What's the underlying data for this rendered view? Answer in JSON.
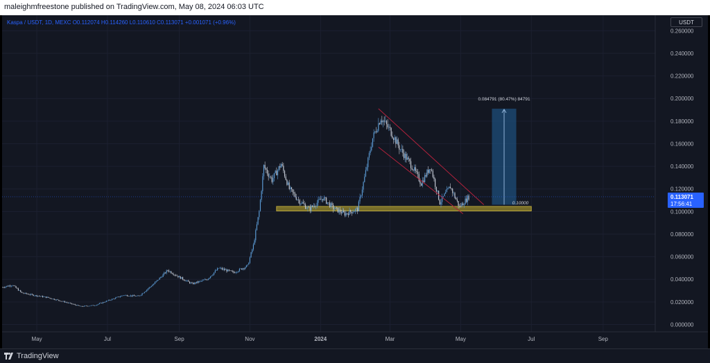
{
  "header": {
    "published_text": "maleighmfreestone published on TradingView.com, May 08, 2024 06:03 UTC"
  },
  "legend": {
    "text": "Kaspa / USDT, 1D, MEXC  O0.112074  H0.114260  L0.110610  C0.113071  +0.001071 (+0.96%)"
  },
  "currency": "USDT",
  "footer": {
    "brand": "TradingView",
    "logo_icon": "tradingview-logo-icon"
  },
  "colors": {
    "background": "#131722",
    "up": "#5b9bd5",
    "down": "#c3c9d4",
    "support_zone": "#8a7d2a",
    "channel": "#b2223c",
    "projection": "#1e4e7a",
    "price_badge": "#2962ff"
  },
  "chart_data": {
    "type": "candlestick",
    "title": "Kaspa / USDT, 1D, MEXC",
    "interval": "1D",
    "ylabel": "USDT",
    "ylim": [
      -0.004,
      0.27
    ],
    "y_ticks": [
      "0.260000",
      "0.240000",
      "0.220000",
      "0.200000",
      "0.180000",
      "0.160000",
      "0.140000",
      "0.120000",
      "0.100000",
      "0.080000",
      "0.060000",
      "0.040000",
      "0.020000",
      "0.000000"
    ],
    "x_ticks": [
      "May",
      "Jul",
      "Sep",
      "Nov",
      "2024",
      "Mar",
      "May",
      "Jul",
      "Sep"
    ],
    "x_ticks_date": [
      "2023-05-01",
      "2023-07-01",
      "2023-09-01",
      "2023-11-01",
      "2024-01-01",
      "2024-03-01",
      "2024-05-01",
      "2024-07-01",
      "2024-09-01"
    ],
    "x_range": [
      "2023-04-01",
      "2024-10-16"
    ],
    "price_path": [
      [
        "2023-04-01",
        0.033
      ],
      [
        "2023-04-10",
        0.035
      ],
      [
        "2023-04-18",
        0.028
      ],
      [
        "2023-04-28",
        0.026
      ],
      [
        "2023-05-10",
        0.024
      ],
      [
        "2023-05-25",
        0.02
      ],
      [
        "2023-06-08",
        0.016
      ],
      [
        "2023-06-20",
        0.017
      ],
      [
        "2023-07-01",
        0.021
      ],
      [
        "2023-07-15",
        0.026
      ],
      [
        "2023-07-28",
        0.025
      ],
      [
        "2023-08-10",
        0.036
      ],
      [
        "2023-08-22",
        0.048
      ],
      [
        "2023-09-01",
        0.042
      ],
      [
        "2023-09-12",
        0.036
      ],
      [
        "2023-09-25",
        0.04
      ],
      [
        "2023-10-05",
        0.05
      ],
      [
        "2023-10-18",
        0.046
      ],
      [
        "2023-10-30",
        0.052
      ],
      [
        "2023-11-04",
        0.07
      ],
      [
        "2023-11-09",
        0.1
      ],
      [
        "2023-11-13",
        0.14
      ],
      [
        "2023-11-20",
        0.128
      ],
      [
        "2023-11-28",
        0.142
      ],
      [
        "2023-12-05",
        0.12
      ],
      [
        "2023-12-13",
        0.11
      ],
      [
        "2023-12-22",
        0.102
      ],
      [
        "2024-01-03",
        0.112
      ],
      [
        "2024-01-12",
        0.103
      ],
      [
        "2024-01-22",
        0.098
      ],
      [
        "2024-02-02",
        0.102
      ],
      [
        "2024-02-08",
        0.13
      ],
      [
        "2024-02-15",
        0.165
      ],
      [
        "2024-02-22",
        0.183
      ],
      [
        "2024-03-01",
        0.172
      ],
      [
        "2024-03-10",
        0.155
      ],
      [
        "2024-03-20",
        0.14
      ],
      [
        "2024-03-28",
        0.125
      ],
      [
        "2024-04-05",
        0.14
      ],
      [
        "2024-04-13",
        0.108
      ],
      [
        "2024-04-22",
        0.122
      ],
      [
        "2024-04-30",
        0.104
      ],
      [
        "2024-05-08",
        0.113
      ]
    ],
    "last_price": "0.113071",
    "countdown": "17:56:41",
    "annotations": {
      "horizontal_level": {
        "label": "0.10000",
        "value": 0.1
      },
      "support_zone": {
        "from": 0.1005,
        "to": 0.1045,
        "start": "2023-11-24",
        "end": "2024-07-01"
      },
      "channel": {
        "upper": [
          [
            "2024-02-20",
            0.191
          ],
          [
            "2024-05-21",
            0.106
          ]
        ],
        "lower": [
          [
            "2024-02-20",
            0.157
          ],
          [
            "2024-05-03",
            0.098
          ]
        ]
      },
      "projection": {
        "label": "0.084791 (80.47%) 84791",
        "from": 0.106,
        "to": 0.191,
        "start": "2024-05-28",
        "end": "2024-06-18"
      }
    }
  }
}
